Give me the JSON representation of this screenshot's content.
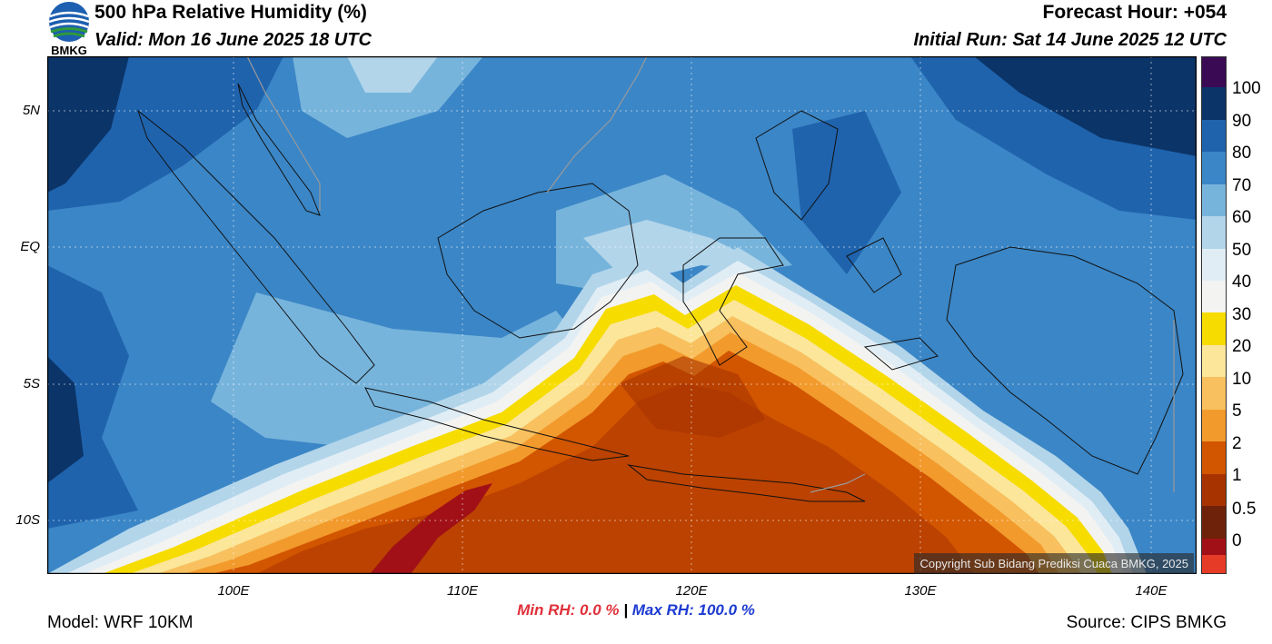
{
  "header": {
    "title": "500 hPa Relative Humidity (%)",
    "valid": "Valid: Mon 16 June 2025 18 UTC",
    "forecast_hour": "Forecast Hour: +054",
    "initial_run": "Initial Run: Sat 14 June 2025 12 UTC",
    "logo_text": "BMKG"
  },
  "map": {
    "lat_labels": [
      "5N",
      "EQ",
      "5S",
      "10S"
    ],
    "lon_labels": [
      "100E",
      "110E",
      "120E",
      "130E",
      "140E"
    ],
    "copyright": "Copyright Sub Bidang Prediksi Cuaca BMKG, 2025"
  },
  "stats": {
    "min_label": "Min RH:",
    "min_value": "0.0 %",
    "separator": "|",
    "max_label": "Max RH:",
    "max_value": "100.0 %"
  },
  "footer": {
    "model": "Model: WRF 10KM",
    "source": "Source: CIPS BMKG"
  },
  "colorbar": {
    "labels": [
      "100",
      "90",
      "80",
      "70",
      "60",
      "50",
      "40",
      "30",
      "20",
      "10",
      "5",
      "2",
      "1",
      "0.5",
      "0"
    ],
    "colors": [
      "#3a0a55",
      "#0b3468",
      "#1f63ad",
      "#3b86c6",
      "#77b4dc",
      "#b2d5ea",
      "#e1edf5",
      "#f3f3f1",
      "#f7dc00",
      "#fbe69a",
      "#f8c05e",
      "#f29a2c",
      "#d25500",
      "#a73300",
      "#6d2209",
      "#a11017",
      "#e63b26"
    ]
  },
  "colors": {
    "stats_min": "#e0303a",
    "stats_max": "#1d3bd1"
  }
}
